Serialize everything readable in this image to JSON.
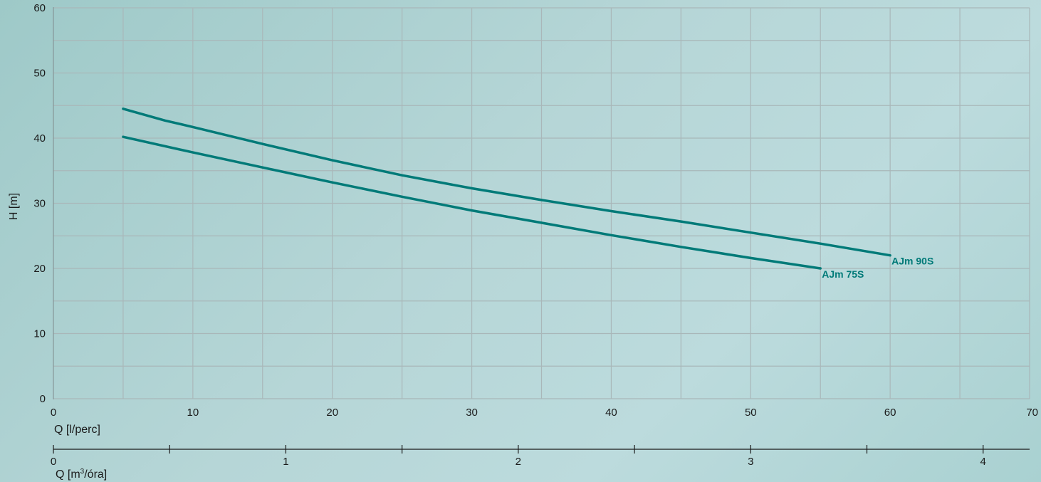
{
  "chart_data": {
    "type": "line",
    "xlabel": "Q [l/perc]",
    "ylabel": "H [m]",
    "xlim": [
      0,
      70
    ],
    "ylim": [
      0,
      60
    ],
    "x_ticks": [
      0,
      10,
      20,
      30,
      40,
      50,
      60,
      70
    ],
    "x_minor_ticks": [
      5,
      15,
      25,
      35,
      45,
      55,
      65
    ],
    "y_ticks": [
      0,
      10,
      20,
      30,
      40,
      50,
      60
    ],
    "y_minor_ticks": [
      5,
      15,
      25,
      35,
      45,
      55
    ],
    "grid": true,
    "series_color": "#007a78",
    "grid_color": "#a9b7b9",
    "secondary_axis": {
      "label_main": "Q [m",
      "label_sup": "3",
      "label_end": "/óra]",
      "lim": [
        0,
        4.2
      ],
      "ticks": [
        0,
        1,
        2,
        3,
        4
      ],
      "minor_ticks": [
        0.5,
        1.5,
        2.5,
        3.5
      ]
    },
    "series": [
      {
        "name": "AJm 90S",
        "x": [
          5,
          8,
          10,
          15,
          20,
          25,
          30,
          35,
          40,
          45,
          50,
          55,
          60
        ],
        "y": [
          44.5,
          42.7,
          41.7,
          39.1,
          36.6,
          34.3,
          32.3,
          30.5,
          28.8,
          27.2,
          25.5,
          23.8,
          22.0
        ]
      },
      {
        "name": "AJm 75S",
        "x": [
          5,
          10,
          15,
          20,
          25,
          30,
          35,
          40,
          45,
          50,
          55
        ],
        "y": [
          40.2,
          37.8,
          35.5,
          33.2,
          31.0,
          28.9,
          27.0,
          25.1,
          23.3,
          21.6,
          20.0
        ]
      }
    ]
  }
}
